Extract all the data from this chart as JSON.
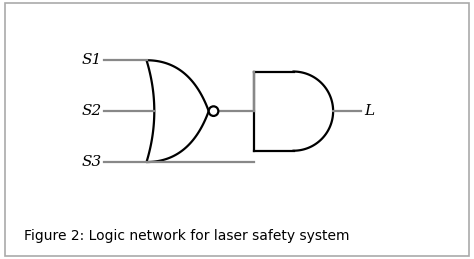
{
  "title": "Figure 2: Logic network for laser safety system",
  "bg_color": "#ffffff",
  "border_color": "#aaaaaa",
  "line_color": "#888888",
  "gate_color": "#000000",
  "label_color": "#000000",
  "labels": [
    "S1",
    "S2",
    "S3",
    "L"
  ],
  "figsize": [
    4.74,
    2.59
  ],
  "dpi": 100,
  "caption_fontsize": 10,
  "label_fontsize": 11
}
